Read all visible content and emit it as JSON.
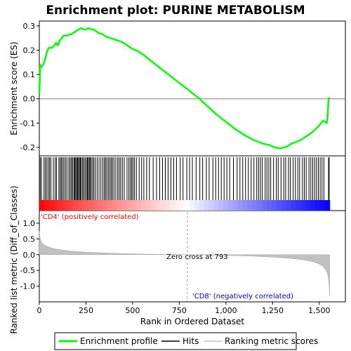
{
  "chart_data": {
    "type": "line",
    "title": "Enrichment plot: PURINE METABOLISM",
    "top_panel": {
      "ylabel": "Enrichment score (ES)",
      "ylim": [
        -0.235,
        0.32
      ],
      "yticks": [
        -0.2,
        -0.1,
        0.0,
        0.1,
        0.2,
        0.3
      ],
      "ytick_labels": [
        "-0.2",
        "-0.1",
        "0.0",
        "0.1",
        "0.2",
        "0.3"
      ],
      "series": [
        {
          "name": "Enrichment profile",
          "color": "#00ff00",
          "x": [
            0,
            5,
            10,
            20,
            30,
            40,
            50,
            60,
            70,
            80,
            90,
            100,
            110,
            120,
            130,
            140,
            150,
            160,
            170,
            180,
            190,
            200,
            210,
            220,
            230,
            240,
            250,
            260,
            270,
            280,
            290,
            300,
            320,
            340,
            360,
            380,
            400,
            420,
            440,
            460,
            480,
            500,
            530,
            560,
            600,
            650,
            700,
            750,
            793,
            850,
            900,
            950,
            1000,
            1050,
            1100,
            1150,
            1200,
            1230,
            1260,
            1290,
            1310,
            1330,
            1350,
            1370,
            1400,
            1420,
            1440,
            1460,
            1480,
            1500,
            1520,
            1540,
            1545,
            1550,
            1556
          ],
          "y": [
            0.02,
            0.14,
            0.13,
            0.14,
            0.16,
            0.19,
            0.21,
            0.21,
            0.21,
            0.22,
            0.23,
            0.22,
            0.24,
            0.25,
            0.26,
            0.26,
            0.26,
            0.265,
            0.265,
            0.27,
            0.275,
            0.28,
            0.285,
            0.29,
            0.29,
            0.285,
            0.285,
            0.29,
            0.29,
            0.285,
            0.285,
            0.28,
            0.27,
            0.265,
            0.255,
            0.25,
            0.245,
            0.24,
            0.235,
            0.225,
            0.215,
            0.205,
            0.195,
            0.18,
            0.155,
            0.125,
            0.095,
            0.065,
            0.04,
            0.005,
            -0.03,
            -0.065,
            -0.095,
            -0.125,
            -0.15,
            -0.17,
            -0.185,
            -0.19,
            -0.2,
            -0.205,
            -0.2,
            -0.195,
            -0.185,
            -0.18,
            -0.17,
            -0.16,
            -0.15,
            -0.14,
            -0.125,
            -0.11,
            -0.09,
            -0.1,
            -0.07,
            0.0,
            0.005
          ]
        }
      ]
    },
    "hits_panel": {
      "name": "Hits",
      "hit_positions": [
        5,
        12,
        25,
        32,
        40,
        48,
        55,
        62,
        75,
        85,
        92,
        105,
        112,
        118,
        125,
        132,
        140,
        148,
        158,
        165,
        172,
        178,
        185,
        190,
        195,
        200,
        205,
        210,
        215,
        220,
        225,
        232,
        238,
        245,
        252,
        258,
        262,
        268,
        272,
        278,
        285,
        292,
        300,
        310,
        320,
        330,
        340,
        348,
        355,
        362,
        370,
        378,
        385,
        392,
        400,
        410,
        420,
        428,
        436,
        445,
        455,
        470,
        480,
        488,
        495,
        502,
        510,
        520,
        535,
        548,
        560,
        575,
        590,
        610,
        628,
        645,
        660,
        675,
        690,
        705,
        720,
        735,
        755,
        770,
        790,
        805,
        820,
        840,
        860,
        875,
        895,
        910,
        930,
        945,
        960,
        975,
        990,
        1005,
        1020,
        1040,
        1060,
        1075,
        1090,
        1105,
        1120,
        1135,
        1150,
        1165,
        1175,
        1185,
        1195,
        1210,
        1220,
        1230,
        1240,
        1255,
        1270,
        1280,
        1295,
        1310,
        1320,
        1335,
        1345,
        1360,
        1372,
        1385,
        1395,
        1410,
        1420,
        1430,
        1445,
        1455,
        1465,
        1475,
        1485,
        1495,
        1505,
        1515,
        1525,
        1550,
        1553
      ]
    },
    "rank_panel": {
      "ylabel": "Ranked list metric (Diff_of_Classes)",
      "xlabel": "Rank in Ordered Dataset",
      "ylim": [
        -1.5,
        1.4
      ],
      "yticks": [
        -1.0,
        -0.5,
        0.0,
        0.5,
        1.0
      ],
      "ytick_labels": [
        "-1.0",
        "-0.5",
        "0.0",
        "0.5",
        "1.0"
      ],
      "xlim": [
        0,
        1640
      ],
      "xticks": [
        0,
        250,
        500,
        750,
        1000,
        1250,
        1500
      ],
      "xtick_labels": [
        "0",
        "250",
        "500",
        "750",
        "1,000",
        "1,250",
        "1,500"
      ],
      "metric_x": [
        0,
        3,
        8,
        15,
        25,
        40,
        60,
        90,
        130,
        180,
        250,
        350,
        450,
        550,
        650,
        750,
        793,
        850,
        950,
        1050,
        1150,
        1250,
        1350,
        1420,
        1470,
        1500,
        1520,
        1535,
        1545,
        1550,
        1553,
        1556
      ],
      "metric_y": [
        0.75,
        0.58,
        0.45,
        0.38,
        0.32,
        0.27,
        0.22,
        0.18,
        0.14,
        0.11,
        0.08,
        0.055,
        0.035,
        0.02,
        0.01,
        0.003,
        0.0,
        -0.005,
        -0.015,
        -0.03,
        -0.05,
        -0.08,
        -0.12,
        -0.17,
        -0.23,
        -0.3,
        -0.38,
        -0.48,
        -0.62,
        -0.8,
        -1.0,
        -1.3
      ],
      "zero_cross": 793,
      "zero_cross_label": "Zero cross at 793",
      "pos_label": "'CD4' (positively correlated)",
      "neg_label": "'CD8' (negatively correlated)",
      "pos_color": "#ff0000",
      "neg_color": "#0000ff"
    },
    "n_genes": 1556,
    "legend": {
      "placement": "bottom",
      "items": [
        {
          "label": "Enrichment profile",
          "color": "#00ff00"
        },
        {
          "label": "Hits",
          "color": "#000000"
        },
        {
          "label": "Ranking metric scores",
          "color": "#c0c0c0"
        }
      ]
    }
  }
}
